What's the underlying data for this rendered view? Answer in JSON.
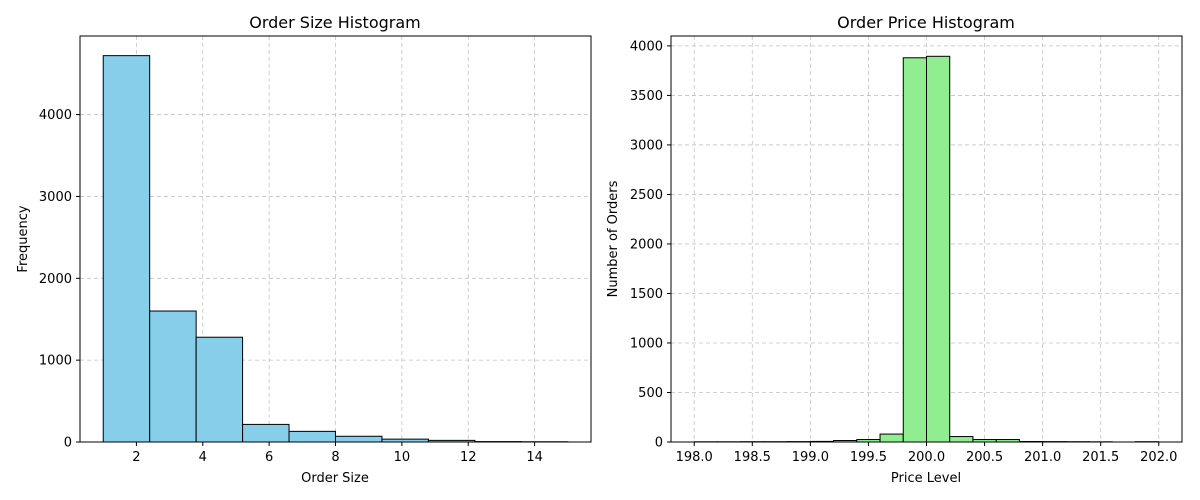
{
  "chart_data": [
    {
      "type": "bar",
      "title": "Order Size Histogram",
      "xlabel": "Order Size",
      "ylabel": "Frequency",
      "xlim": [
        0.3,
        15.7
      ],
      "ylim": [
        0,
        4960
      ],
      "xticks": [
        2,
        4,
        6,
        8,
        10,
        12,
        14
      ],
      "yticks": [
        0,
        1000,
        2000,
        3000,
        4000
      ],
      "grid": true,
      "bar_color": "#87CEEB",
      "edge_color": "#000000",
      "bins": [
        {
          "start": 1.0,
          "end": 2.4,
          "value": 4720
        },
        {
          "start": 2.4,
          "end": 3.8,
          "value": 1600
        },
        {
          "start": 3.8,
          "end": 5.2,
          "value": 1280
        },
        {
          "start": 5.2,
          "end": 6.6,
          "value": 215
        },
        {
          "start": 6.6,
          "end": 8.0,
          "value": 130
        },
        {
          "start": 8.0,
          "end": 9.4,
          "value": 70
        },
        {
          "start": 9.4,
          "end": 10.8,
          "value": 35
        },
        {
          "start": 10.8,
          "end": 12.2,
          "value": 20
        },
        {
          "start": 12.2,
          "end": 13.6,
          "value": 5
        },
        {
          "start": 13.6,
          "end": 15.0,
          "value": 3
        }
      ]
    },
    {
      "type": "bar",
      "title": "Order Price Histogram",
      "xlabel": "Price Level",
      "ylabel": "Number of Orders",
      "xlim": [
        197.8,
        202.2
      ],
      "ylim": [
        0,
        4100
      ],
      "xticks": [
        198.0,
        198.5,
        199.0,
        199.5,
        200.0,
        200.5,
        201.0,
        201.5,
        202.0
      ],
      "xtick_labels": [
        "198.0",
        "198.5",
        "199.0",
        "199.5",
        "200.0",
        "200.5",
        "201.0",
        "201.5",
        "202.0"
      ],
      "yticks": [
        0,
        500,
        1000,
        1500,
        2000,
        2500,
        3000,
        3500,
        4000
      ],
      "grid": true,
      "bar_color": "#90EE90",
      "edge_color": "#000000",
      "bins": [
        {
          "start": 198.0,
          "end": 198.2,
          "value": 2
        },
        {
          "start": 198.2,
          "end": 198.4,
          "value": 2
        },
        {
          "start": 198.4,
          "end": 198.6,
          "value": 3
        },
        {
          "start": 198.6,
          "end": 198.8,
          "value": 3
        },
        {
          "start": 198.8,
          "end": 199.0,
          "value": 4
        },
        {
          "start": 199.0,
          "end": 199.2,
          "value": 6
        },
        {
          "start": 199.2,
          "end": 199.4,
          "value": 15
        },
        {
          "start": 199.4,
          "end": 199.6,
          "value": 25
        },
        {
          "start": 199.6,
          "end": 199.8,
          "value": 80
        },
        {
          "start": 199.8,
          "end": 200.0,
          "value": 3880
        },
        {
          "start": 200.0,
          "end": 200.2,
          "value": 3895
        },
        {
          "start": 200.2,
          "end": 200.4,
          "value": 55
        },
        {
          "start": 200.4,
          "end": 200.6,
          "value": 25
        },
        {
          "start": 200.6,
          "end": 200.8,
          "value": 25
        },
        {
          "start": 200.8,
          "end": 201.0,
          "value": 5
        },
        {
          "start": 201.0,
          "end": 201.2,
          "value": 4
        },
        {
          "start": 201.2,
          "end": 201.4,
          "value": 3
        },
        {
          "start": 201.4,
          "end": 201.6,
          "value": 2
        },
        {
          "start": 201.6,
          "end": 201.8,
          "value": 0
        },
        {
          "start": 201.8,
          "end": 202.0,
          "value": 3
        }
      ]
    }
  ]
}
